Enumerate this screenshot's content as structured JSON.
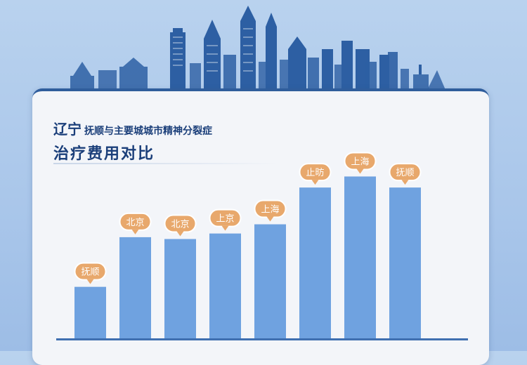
{
  "header": {
    "title_line1_big": "辽宁",
    "title_line1_rest": "抚顺与主要城城市精神分裂症",
    "title_line2": "治疗费用对比"
  },
  "colors": {
    "bar": "#6fa2e0",
    "bar_top": "#78aae6",
    "label_bubble": "#e8a86c",
    "label_bubble_stroke": "#ffffff",
    "label_text": "#ffffff",
    "baseline": "#3f6fb0",
    "skyline": "#2d5fa3"
  },
  "chart_data": {
    "type": "bar",
    "categories": [
      "抚顺",
      "北京",
      "北京",
      "上京",
      "上海",
      "止昉",
      "上海",
      "抚顺"
    ],
    "values": [
      28,
      55,
      54,
      57,
      62,
      82,
      88,
      82
    ],
    "ylim": [
      0,
      100
    ],
    "grid": false,
    "legend": "none"
  }
}
